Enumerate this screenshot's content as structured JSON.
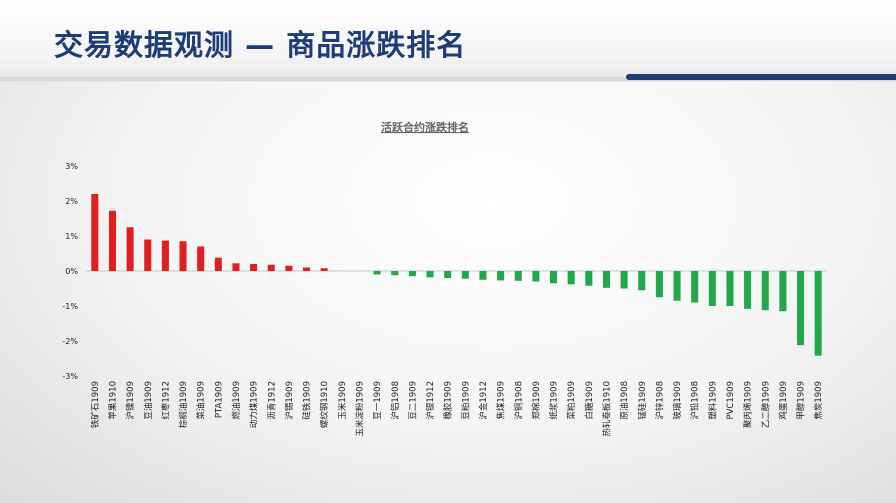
{
  "slide": {
    "title": "交易数据观测 — 商品涨跌排名"
  },
  "colors": {
    "title": "#1f3c7a",
    "positive": "#e02020",
    "negative": "#22a84a"
  },
  "chart_data": {
    "type": "bar",
    "title": "活跃合约涨跌排名",
    "xlabel": "",
    "ylabel": "",
    "ylim": [
      -3,
      3
    ],
    "yticks": [
      3,
      2,
      1,
      0,
      -1,
      -2,
      -3
    ],
    "ytick_labels": [
      "3%",
      "2%",
      "1%",
      "0%",
      "-1%",
      "-2%",
      "-3%"
    ],
    "grid": false,
    "legend": "none",
    "categories": [
      "铁矿石1909",
      "苹果1910",
      "沪镍1909",
      "豆油1909",
      "红枣1912",
      "棕榈油1909",
      "菜油1909",
      "PTA1909",
      "燃油1909",
      "动力煤1909",
      "沥青1912",
      "沪锡1909",
      "硅铁1909",
      "螺纹钢1910",
      "玉米1909",
      "玉米淀粉1909",
      "豆一1909",
      "沪铝1908",
      "豆二1909",
      "沪银1912",
      "橡胶1909",
      "豆粕1909",
      "沪金1912",
      "焦煤1909",
      "沪铜1908",
      "郑棉1909",
      "纸浆1909",
      "菜粕1909",
      "白糖1909",
      "热轧卷板1910",
      "原油1908",
      "锰硅1909",
      "沪锌1908",
      "玻璃1909",
      "沪铅1908",
      "塑料1909",
      "PVC1909",
      "聚丙烯1909",
      "乙二醇1909",
      "鸡蛋1909",
      "甲醇1909",
      "焦炭1909"
    ],
    "values": [
      2.2,
      1.72,
      1.25,
      0.9,
      0.87,
      0.85,
      0.7,
      0.38,
      0.22,
      0.2,
      0.18,
      0.15,
      0.1,
      0.08,
      0.0,
      0.0,
      -0.1,
      -0.12,
      -0.15,
      -0.18,
      -0.2,
      -0.22,
      -0.25,
      -0.27,
      -0.28,
      -0.3,
      -0.35,
      -0.38,
      -0.42,
      -0.48,
      -0.5,
      -0.55,
      -0.75,
      -0.85,
      -0.9,
      -1.0,
      -1.0,
      -1.08,
      -1.12,
      -1.15,
      -2.12,
      -2.42
    ]
  }
}
